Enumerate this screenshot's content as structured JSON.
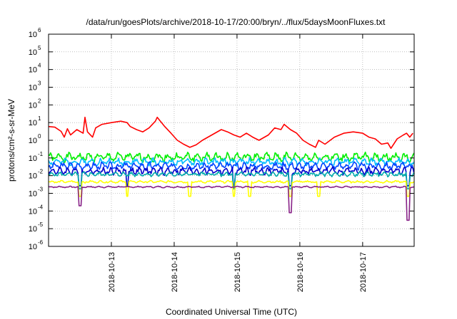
{
  "chart_data": {
    "type": "line",
    "title": "/data/run/goesPlots/archive/2018-10-17/20:00/bryn/../flux/5daysMoonFluxes.txt",
    "xlabel": "Coordinated Universal Time (UTC)",
    "ylabel": "protons/cm²-s-sr-MeV",
    "yscale": "log",
    "ylim_exp": [
      -6,
      6
    ],
    "xlim": [
      0,
      5.82
    ],
    "grid": true,
    "x_ticks": [
      {
        "x": 1.0,
        "label": "2018-10-13"
      },
      {
        "x": 2.0,
        "label": "2018-10-14"
      },
      {
        "x": 3.0,
        "label": "2018-10-15"
      },
      {
        "x": 4.0,
        "label": "2018-10-16"
      },
      {
        "x": 5.0,
        "label": "2018-10-17"
      }
    ],
    "y_ticks": [
      {
        "exp": 6,
        "base": "10",
        "sup": "6"
      },
      {
        "exp": 5,
        "base": "10",
        "sup": "5"
      },
      {
        "exp": 4,
        "base": "10",
        "sup": "4"
      },
      {
        "exp": 3,
        "base": "10",
        "sup": "3"
      },
      {
        "exp": 2,
        "base": "10",
        "sup": "2"
      },
      {
        "exp": 1,
        "base": "10",
        "sup": "1"
      },
      {
        "exp": 0,
        "base": "10",
        "sup": "0"
      },
      {
        "exp": -1,
        "base": "10",
        "sup": "-1"
      },
      {
        "exp": -2,
        "base": "10",
        "sup": "-2"
      },
      {
        "exp": -3,
        "base": "10",
        "sup": "-3"
      },
      {
        "exp": -4,
        "base": "10",
        "sup": "-4"
      },
      {
        "exp": -5,
        "base": "10",
        "sup": "-5"
      },
      {
        "exp": -6,
        "base": "10",
        "sup": "-6"
      }
    ],
    "series": [
      {
        "color": "#ff0000",
        "points": [
          [
            0.0,
            6.0
          ],
          [
            0.1,
            5.5
          ],
          [
            0.2,
            3.2
          ],
          [
            0.25,
            1.5
          ],
          [
            0.3,
            4.5
          ],
          [
            0.35,
            2.0
          ],
          [
            0.45,
            4.0
          ],
          [
            0.55,
            2.5
          ],
          [
            0.58,
            20
          ],
          [
            0.62,
            3.0
          ],
          [
            0.7,
            1.5
          ],
          [
            0.75,
            5.0
          ],
          [
            0.85,
            8.0
          ],
          [
            1.0,
            10
          ],
          [
            1.15,
            12
          ],
          [
            1.25,
            10
          ],
          [
            1.3,
            6.0
          ],
          [
            1.4,
            4.0
          ],
          [
            1.5,
            3.0
          ],
          [
            1.6,
            5.0
          ],
          [
            1.7,
            12
          ],
          [
            1.73,
            20
          ],
          [
            1.78,
            12
          ],
          [
            1.85,
            6.0
          ],
          [
            1.95,
            2.5
          ],
          [
            2.05,
            1.0
          ],
          [
            2.15,
            0.6
          ],
          [
            2.25,
            0.4
          ],
          [
            2.35,
            0.55
          ],
          [
            2.45,
            1.0
          ],
          [
            2.6,
            2.0
          ],
          [
            2.75,
            4.0
          ],
          [
            2.85,
            3.0
          ],
          [
            2.95,
            2.0
          ],
          [
            3.05,
            1.5
          ],
          [
            3.15,
            2.5
          ],
          [
            3.25,
            1.5
          ],
          [
            3.35,
            1.0
          ],
          [
            3.5,
            2.0
          ],
          [
            3.6,
            5.0
          ],
          [
            3.7,
            4.0
          ],
          [
            3.75,
            8.0
          ],
          [
            3.85,
            4.0
          ],
          [
            3.95,
            2.5
          ],
          [
            4.05,
            1.0
          ],
          [
            4.15,
            0.6
          ],
          [
            4.25,
            0.4
          ],
          [
            4.3,
            1.0
          ],
          [
            4.4,
            0.6
          ],
          [
            4.55,
            1.5
          ],
          [
            4.7,
            2.5
          ],
          [
            4.85,
            3.0
          ],
          [
            5.0,
            2.5
          ],
          [
            5.1,
            1.5
          ],
          [
            5.2,
            1.2
          ],
          [
            5.3,
            0.6
          ],
          [
            5.4,
            0.7
          ],
          [
            5.45,
            0.35
          ],
          [
            5.55,
            1.2
          ],
          [
            5.65,
            2.0
          ],
          [
            5.7,
            2.5
          ],
          [
            5.75,
            1.5
          ],
          [
            5.8,
            2.5
          ]
        ]
      },
      {
        "color": "#00ee00",
        "base": 0.11,
        "amp": 0.3,
        "freq": 40,
        "seed": 1,
        "dips": []
      },
      {
        "color": "#00bbff",
        "base": 0.06,
        "amp": 0.25,
        "freq": 45,
        "seed": 2,
        "dips": []
      },
      {
        "color": "#0044ff",
        "base": 0.035,
        "amp": 0.25,
        "freq": 50,
        "seed": 3,
        "dips": []
      },
      {
        "color": "#0000cc",
        "base": 0.018,
        "amp": 0.25,
        "freq": 55,
        "seed": 4,
        "dips": [
          0.5,
          1.25,
          2.95,
          3.85,
          5.72
        ]
      },
      {
        "color": "#00aaaa",
        "base": 0.012,
        "amp": 0.15,
        "freq": 50,
        "seed": 5,
        "dips": [
          0.5,
          2.95,
          3.85,
          5.72
        ]
      },
      {
        "color": "#ffff00",
        "base": 0.0045,
        "amp": 0.08,
        "freq": 40,
        "seed": 6,
        "dips": [
          0.5,
          1.25,
          2.25,
          2.95,
          3.2,
          3.85,
          4.3,
          5.72
        ]
      },
      {
        "color": "#882288",
        "base": 0.0023,
        "amp": 0.05,
        "freq": 40,
        "seed": 7,
        "dips": [
          0.5,
          3.85,
          5.72
        ],
        "dip_min": [
          0.0002,
          8e-05,
          3e-05
        ]
      }
    ]
  }
}
